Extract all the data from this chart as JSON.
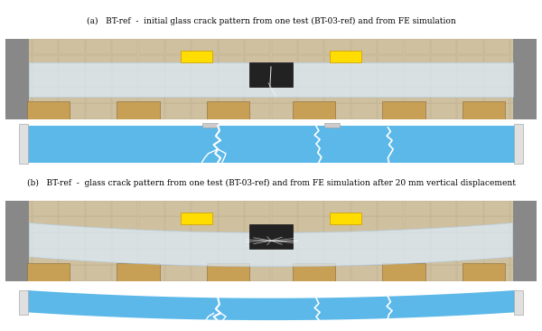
{
  "label_a": "(a)   BT-ref  -  initial glass crack pattern from one test (BT-03-ref) and from FE simulation",
  "label_b": "(b)   BT-ref  -  glass crack pattern from one test (BT-03-ref) and from FE simulation after 20 mm vertical displacement",
  "bg_color": "#ffffff",
  "blue_color": "#5bb8e8",
  "white_color": "#ffffff",
  "gray_color": "#d0d0d0",
  "fig_width": 6.0,
  "fig_height": 3.66,
  "label_fontsize": 6.5
}
